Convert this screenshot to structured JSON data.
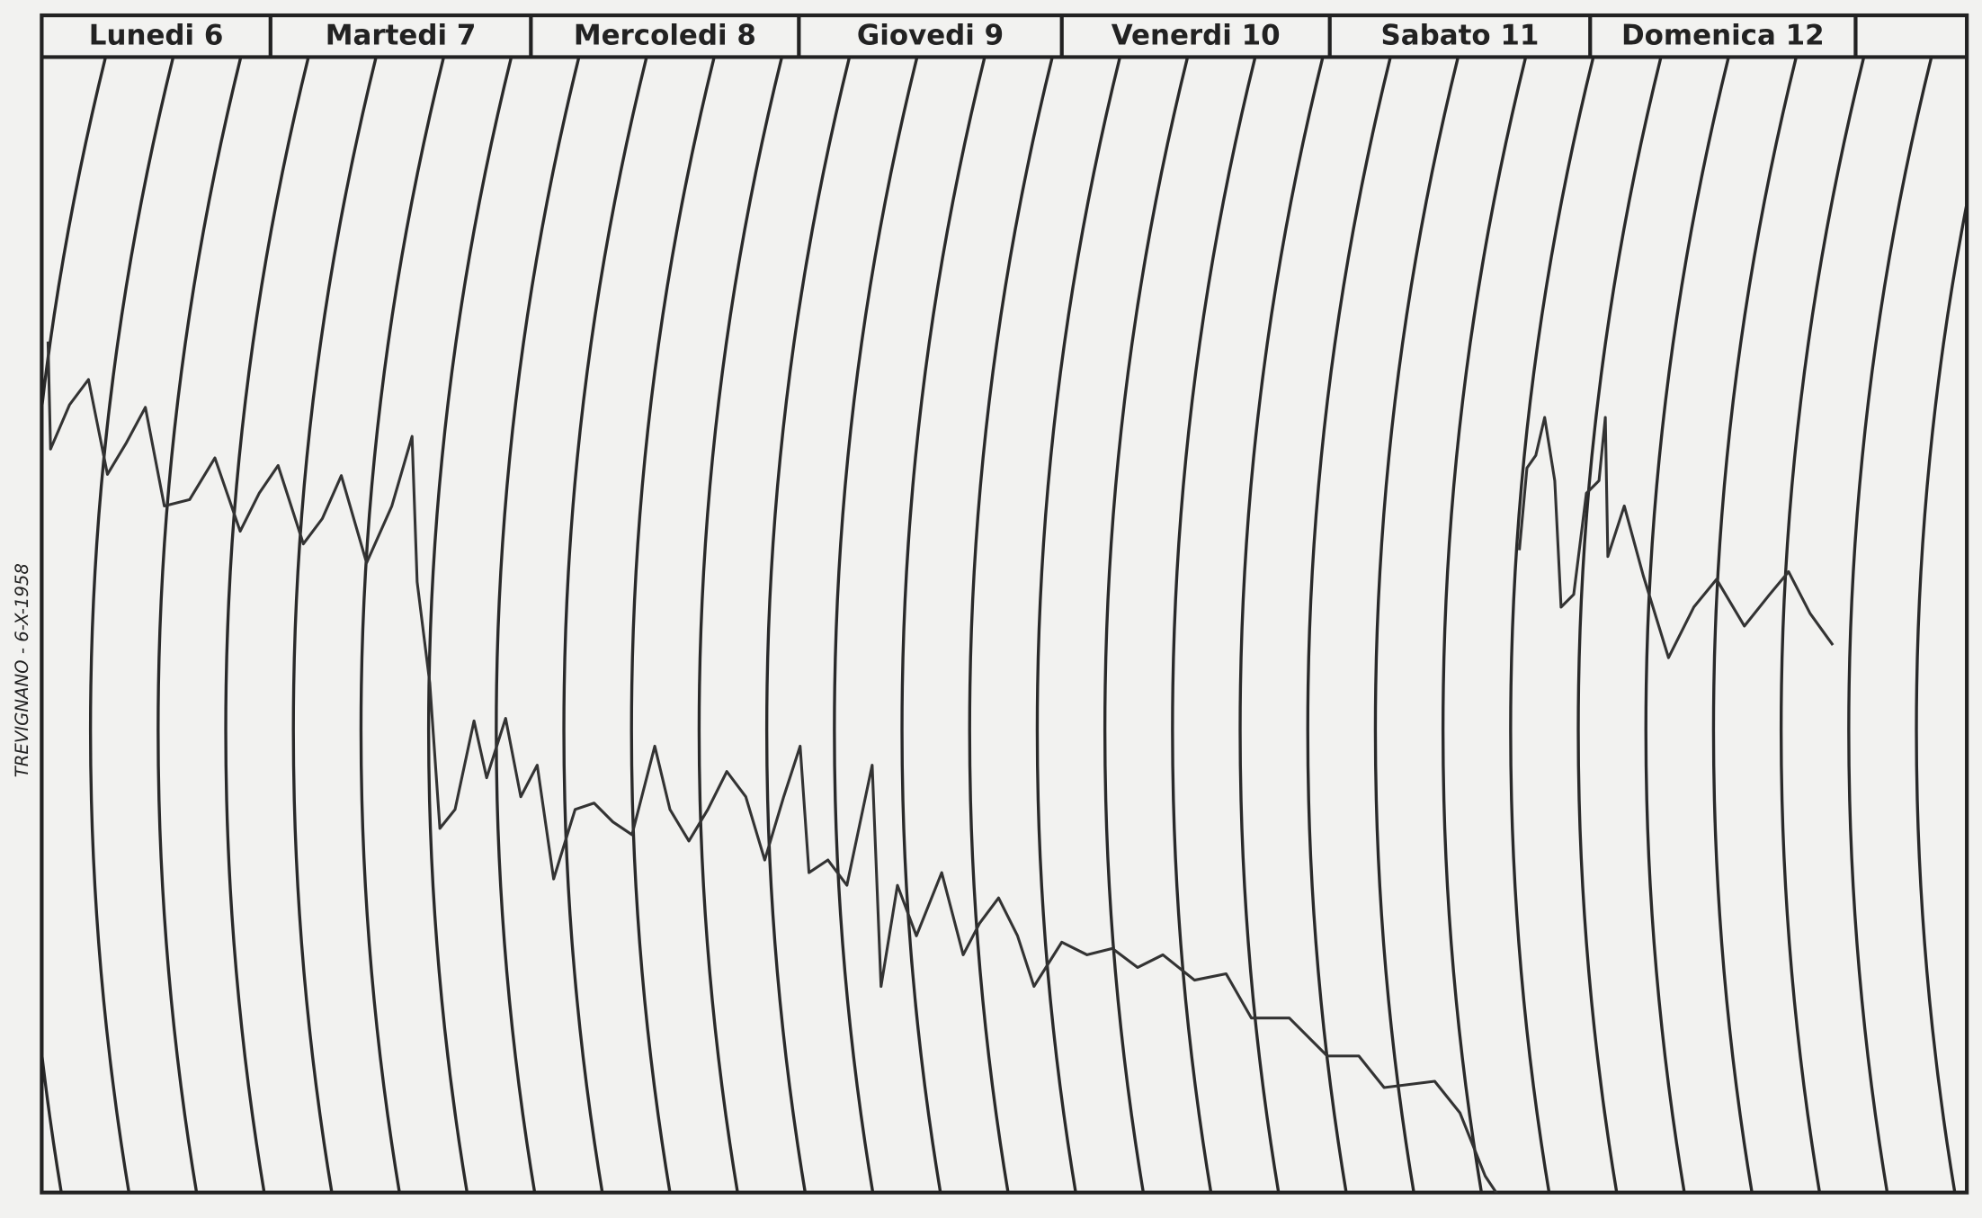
{
  "header": {
    "days": [
      "Lunedi 6",
      "Martedi 7",
      "Mercoledi 8",
      "Giovedi 9",
      "Venerdi 10",
      "Sabato 11",
      "Domenica 12"
    ]
  },
  "side_note": "TREVIGNANO - 6-X-1958"
}
